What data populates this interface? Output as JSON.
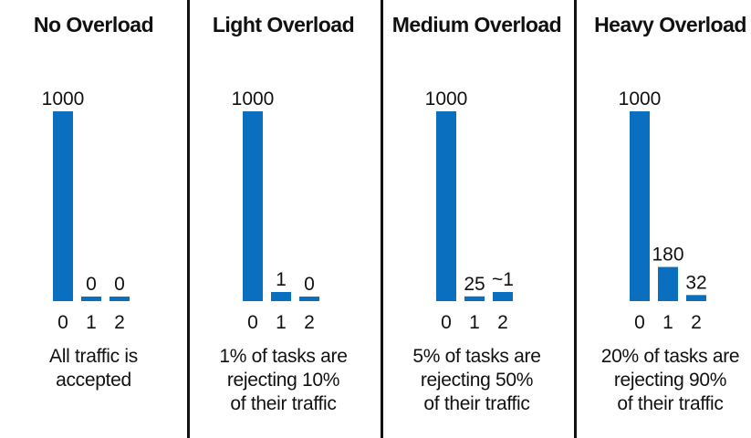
{
  "chart_data": [
    {
      "type": "bar",
      "title": "No Overload",
      "categories": [
        "0",
        "1",
        "2"
      ],
      "values": [
        1000,
        0,
        0
      ],
      "value_labels": [
        "1000",
        "0",
        "0"
      ],
      "caption_lines": [
        "All traffic is",
        "accepted"
      ],
      "ylim": [
        0,
        1000
      ],
      "grid": false
    },
    {
      "type": "bar",
      "title": "Light Overload",
      "categories": [
        "0",
        "1",
        "2"
      ],
      "values": [
        1000,
        1,
        0
      ],
      "value_labels": [
        "1000",
        "1",
        "0"
      ],
      "caption_lines": [
        "1% of tasks are",
        "rejecting 10%",
        "of their traffic"
      ],
      "ylim": [
        0,
        1000
      ],
      "grid": false
    },
    {
      "type": "bar",
      "title": "Medium Overload",
      "categories": [
        "0",
        "1",
        "2"
      ],
      "values": [
        1000,
        25,
        1
      ],
      "value_labels": [
        "1000",
        "25",
        "~1"
      ],
      "caption_lines": [
        "5% of tasks are",
        "rejecting 50%",
        "of their traffic"
      ],
      "ylim": [
        0,
        1000
      ],
      "grid": false
    },
    {
      "type": "bar",
      "title": "Heavy Overload",
      "categories": [
        "0",
        "1",
        "2"
      ],
      "values": [
        1000,
        180,
        32
      ],
      "value_labels": [
        "1000",
        "180",
        "32"
      ],
      "caption_lines": [
        "20% of tasks are",
        "rejecting 90%",
        "of their traffic"
      ],
      "ylim": [
        0,
        1000
      ],
      "grid": false
    }
  ],
  "colors": {
    "bar": "#0b6fc0",
    "divider": "#111111",
    "text": "#111111"
  }
}
